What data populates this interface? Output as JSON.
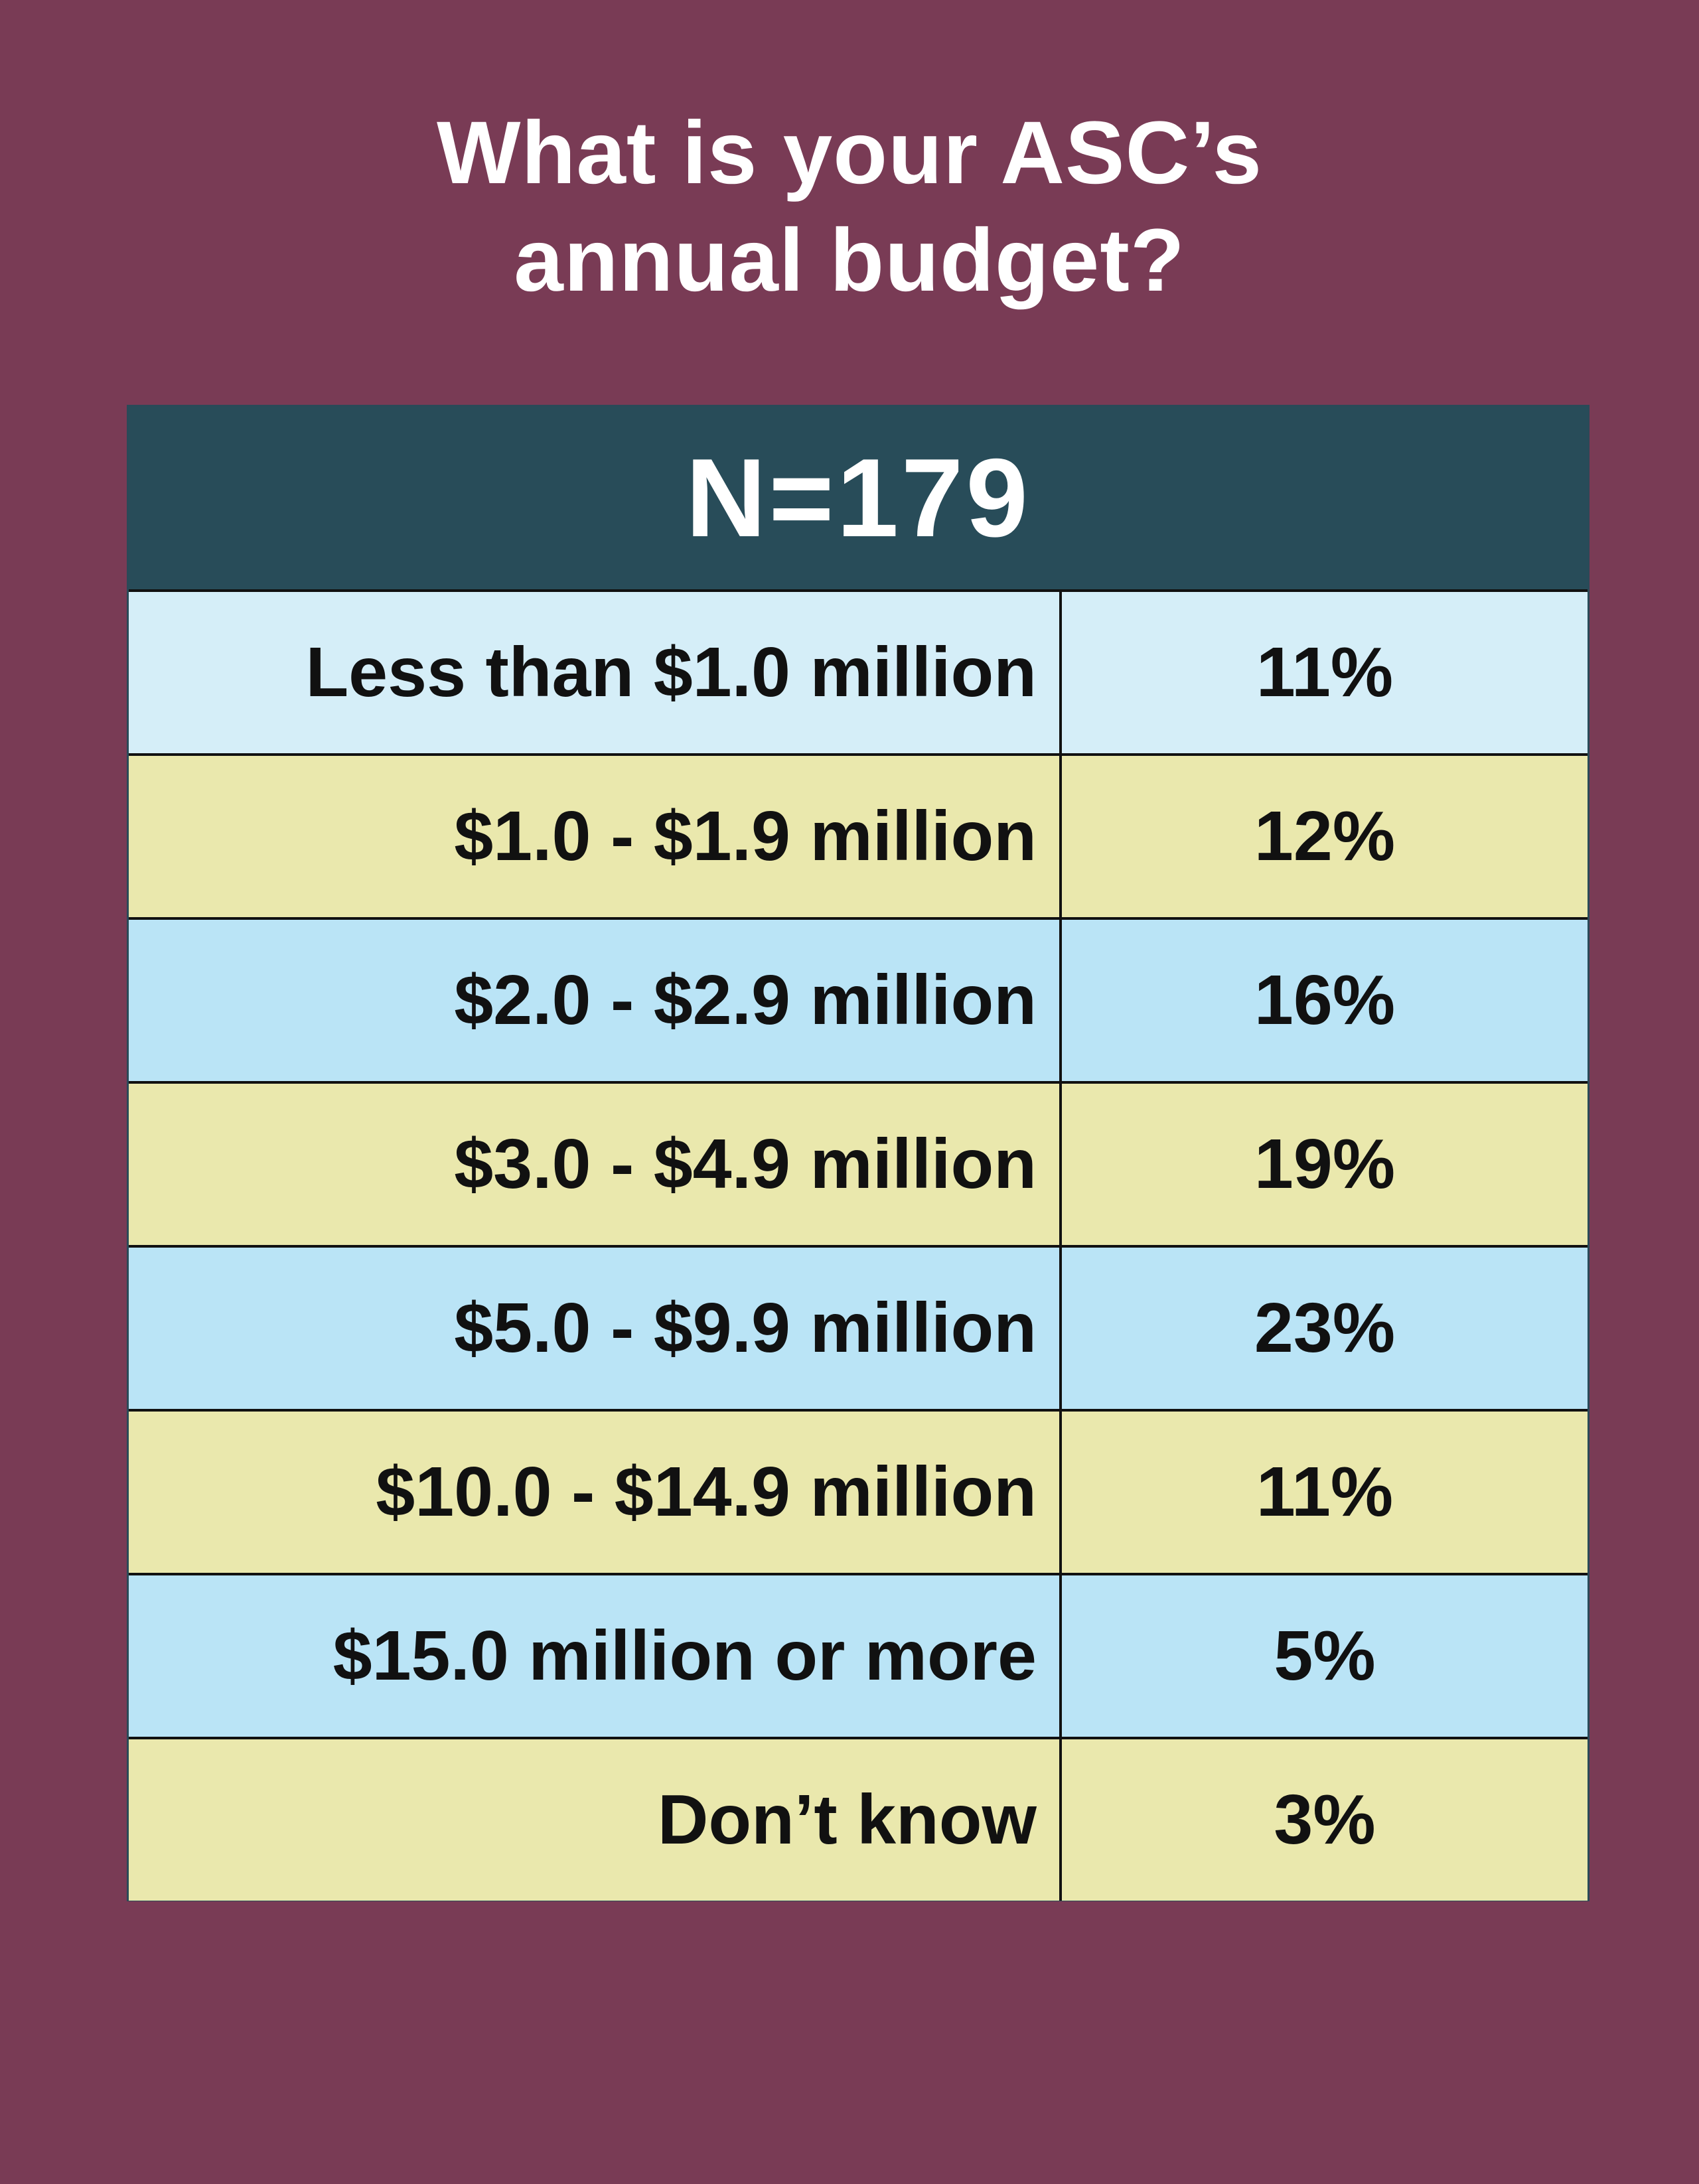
{
  "chart_data": {
    "type": "table",
    "title_lines": [
      "What is your ASC’s",
      "annual budget?"
    ],
    "n_label": "N=179",
    "rows": [
      {
        "label": "Less than $1.0 million",
        "value": "11%"
      },
      {
        "label": "$1.0 - $1.9 million",
        "value": "12%"
      },
      {
        "label": "$2.0 - $2.9 million",
        "value": "16%"
      },
      {
        "label": "$3.0 - $4.9 million",
        "value": "19%"
      },
      {
        "label": "$5.0 - $9.9 million",
        "value": "23%"
      },
      {
        "label": "$10.0 - $14.9 million",
        "value": "11%"
      },
      {
        "label": "$15.0 million or more",
        "value": "5%"
      },
      {
        "label": "Don’t know",
        "value": "3%"
      }
    ]
  },
  "colors": {
    "background": "#793b55",
    "header": "#284c59",
    "row_blue": "#bae4f6",
    "row_blue_light": "#d5eef8",
    "row_yellow": "#eae8ad",
    "text_dark": "#111111",
    "text_light": "#ffffff"
  }
}
